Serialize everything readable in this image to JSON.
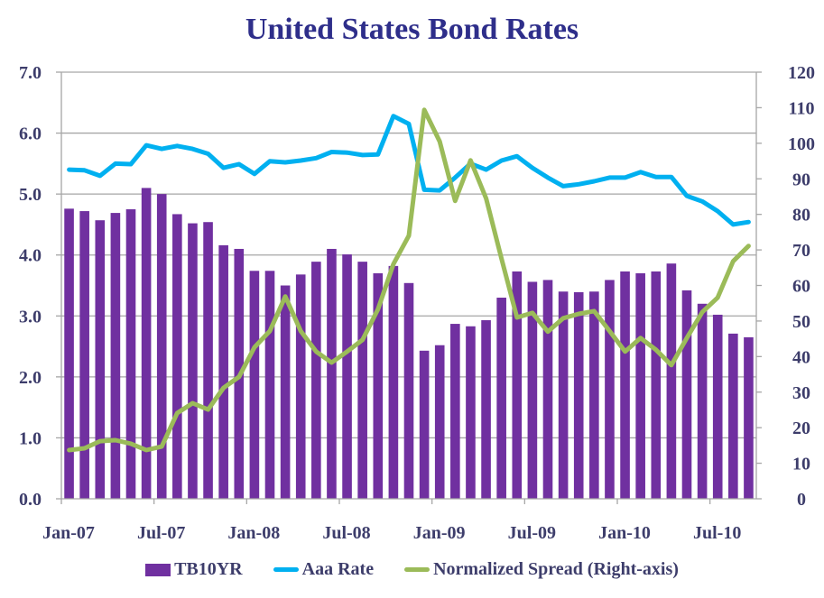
{
  "chart_data": {
    "type": "bar",
    "title": "United States Bond Rates",
    "xlabel": "",
    "ylabel": "",
    "ylim": [
      0,
      7
    ],
    "y2lim": [
      0,
      120
    ],
    "yticks": [
      "0.0",
      "1.0",
      "2.0",
      "3.0",
      "4.0",
      "5.0",
      "6.0",
      "7.0"
    ],
    "y2ticks": [
      "0",
      "10",
      "20",
      "30",
      "40",
      "50",
      "60",
      "70",
      "80",
      "90",
      "100",
      "110",
      "120"
    ],
    "xtick_labels": [
      "Jan-07",
      "Jul-07",
      "Jan-08",
      "Jul-08",
      "Jan-09",
      "Jul-09",
      "Jan-10",
      "Jul-10"
    ],
    "xtick_every": 6,
    "grid": true,
    "legend_position": "bottom",
    "categories": [
      "Jan-07",
      "Feb-07",
      "Mar-07",
      "Apr-07",
      "May-07",
      "Jun-07",
      "Jul-07",
      "Aug-07",
      "Sep-07",
      "Oct-07",
      "Nov-07",
      "Dec-07",
      "Jan-08",
      "Feb-08",
      "Mar-08",
      "Apr-08",
      "May-08",
      "Jun-08",
      "Jul-08",
      "Aug-08",
      "Sep-08",
      "Oct-08",
      "Nov-08",
      "Dec-08",
      "Jan-09",
      "Feb-09",
      "Mar-09",
      "Apr-09",
      "May-09",
      "Jun-09",
      "Jul-09",
      "Aug-09",
      "Sep-09",
      "Oct-09",
      "Nov-09",
      "Dec-09",
      "Jan-10",
      "Feb-10",
      "Mar-10",
      "Apr-10",
      "May-10",
      "Jun-10",
      "Jul-10",
      "Aug-10",
      "Sep-10"
    ],
    "series": [
      {
        "name": "TB10YR",
        "type": "bar",
        "axis": "left",
        "color": "#7030a0",
        "values": [
          4.76,
          4.72,
          4.57,
          4.69,
          4.75,
          5.1,
          5.0,
          4.67,
          4.52,
          4.54,
          4.16,
          4.1,
          3.74,
          3.74,
          3.5,
          3.68,
          3.89,
          4.1,
          4.01,
          3.89,
          3.7,
          3.82,
          3.54,
          2.43,
          2.52,
          2.87,
          2.83,
          2.93,
          3.3,
          3.73,
          3.56,
          3.59,
          3.4,
          3.39,
          3.4,
          3.59,
          3.73,
          3.7,
          3.73,
          3.86,
          3.42,
          3.2,
          3.02,
          2.71,
          2.65
        ]
      },
      {
        "name": "Aaa Rate",
        "type": "line",
        "axis": "left",
        "color": "#00b0f0",
        "values": [
          5.4,
          5.39,
          5.3,
          5.5,
          5.49,
          5.8,
          5.74,
          5.79,
          5.74,
          5.66,
          5.43,
          5.49,
          5.33,
          5.54,
          5.52,
          5.55,
          5.59,
          5.69,
          5.68,
          5.64,
          5.65,
          6.28,
          6.15,
          5.07,
          5.06,
          5.27,
          5.5,
          5.4,
          5.55,
          5.62,
          5.43,
          5.27,
          5.13,
          5.16,
          5.21,
          5.27,
          5.27,
          5.36,
          5.28,
          5.28,
          4.97,
          4.88,
          4.72,
          4.5,
          4.54
        ]
      },
      {
        "name": "Normalized Spread (Right-axis)",
        "type": "line",
        "axis": "right",
        "color": "#9bbb59",
        "values": [
          13.7,
          14.2,
          16.2,
          16.5,
          15.5,
          13.7,
          14.7,
          24.1,
          26.9,
          25.1,
          31.2,
          34.3,
          42.6,
          47.2,
          56.9,
          47.2,
          41.4,
          38.3,
          41.4,
          44.7,
          53.3,
          66.0,
          74.0,
          109.4,
          100.5,
          83.8,
          95.2,
          84.5,
          67.5,
          51.0,
          52.3,
          47.0,
          50.8,
          52.0,
          52.8,
          47.2,
          41.4,
          45.2,
          41.9,
          37.6,
          45.2,
          52.5,
          56.6,
          66.8,
          71.1
        ]
      }
    ]
  },
  "legend": {
    "items": [
      {
        "label": "TB10YR",
        "kind": "bar",
        "color": "#7030a0"
      },
      {
        "label": "Aaa Rate",
        "kind": "line",
        "color": "#00b0f0"
      },
      {
        "label": "Normalized Spread (Right-axis)",
        "kind": "line",
        "color": "#9bbb59"
      }
    ]
  }
}
